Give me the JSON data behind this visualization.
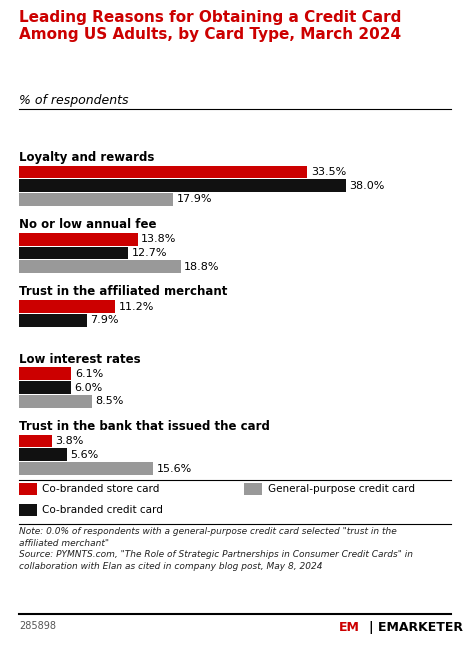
{
  "title": "Leading Reasons for Obtaining a Credit Card\nAmong US Adults, by Card Type, March 2024",
  "subtitle": "% of respondents",
  "categories": [
    "Loyalty and rewards",
    "No or low annual fee",
    "Trust in the affiliated merchant",
    "Low interest rates",
    "Trust in the bank that issued the card"
  ],
  "series": {
    "co_store": [
      33.5,
      13.8,
      11.2,
      6.1,
      3.8
    ],
    "co_credit": [
      38.0,
      12.7,
      7.9,
      6.0,
      5.6
    ],
    "general": [
      17.9,
      18.8,
      0.0,
      8.5,
      15.6
    ]
  },
  "colors": {
    "co_store": "#cc0000",
    "co_credit": "#111111",
    "general": "#999999"
  },
  "note_line1": "Note: 0.0% of respondents with a general-purpose credit card selected \"trust in the",
  "note_line2": "affiliated merchant\"",
  "note_line3": "Source: PYMNTS.com, \"The Role of Strategic Partnerships in Consumer Credit Cards\" in",
  "note_line4": "collaboration with Elan as cited in company blog post, May 8, 2024",
  "footnote_id": "285898",
  "background_color": "#ffffff",
  "title_color": "#cc0000",
  "text_color": "#000000"
}
